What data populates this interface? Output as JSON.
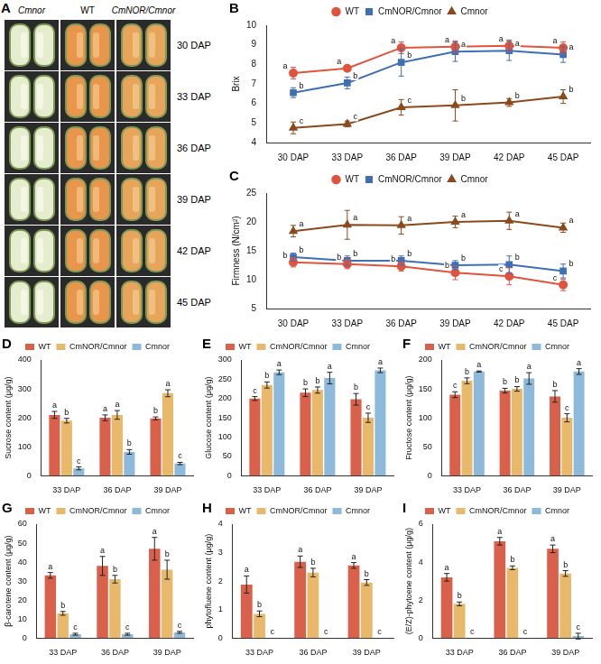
{
  "photo_panel": {
    "panel": "A",
    "columns": [
      "Cmnor",
      "WT",
      "CmNOR/Cmnor"
    ],
    "rows": [
      "30 DAP",
      "33 DAP",
      "36 DAP",
      "39 DAP",
      "42 DAP",
      "45 DAP"
    ]
  },
  "chart_data": [
    {
      "panel": "B",
      "type": "line",
      "y_label": "Brix",
      "categories": [
        "30 DAP",
        "33 DAP",
        "36 DAP",
        "39 DAP",
        "42 DAP",
        "45 DAP"
      ],
      "ylim": [
        4,
        10
      ],
      "yticks": [
        4,
        5,
        6,
        7,
        8,
        9,
        10
      ],
      "grid": false,
      "legend": "top",
      "series": [
        {
          "name": "WT",
          "color": "#e0533d",
          "marker": "circle",
          "values": [
            7.55,
            7.8,
            8.85,
            8.9,
            8.95,
            8.85
          ],
          "errors": [
            0.3,
            0.1,
            0.3,
            0.3,
            0.3,
            0.3
          ],
          "letters": [
            "a",
            "a",
            "a",
            "a",
            "a",
            "a"
          ]
        },
        {
          "name": "CmNOR/Cmnor",
          "color": "#3f6fb5",
          "marker": "square",
          "values": [
            6.55,
            7.05,
            8.1,
            8.65,
            8.7,
            8.5
          ],
          "errors": [
            0.25,
            0.3,
            0.7,
            0.5,
            0.5,
            0.4
          ],
          "letters": [
            "b",
            "b",
            "b",
            "a",
            "a",
            "a"
          ]
        },
        {
          "name": "Cmnor",
          "color": "#8b4a1e",
          "marker": "triangle",
          "values": [
            4.75,
            4.95,
            5.8,
            5.9,
            6.05,
            6.35
          ],
          "errors": [
            0.3,
            0.15,
            0.4,
            0.8,
            0.2,
            0.35
          ],
          "letters": [
            "c",
            "c",
            "c",
            "b",
            "b",
            "b"
          ]
        }
      ]
    },
    {
      "panel": "C",
      "type": "line",
      "y_label": "Firmness (N/cm²)",
      "categories": [
        "30 DAP",
        "33 DAP",
        "36 DAP",
        "39 DAP",
        "42 DAP",
        "45 DAP"
      ],
      "ylim": [
        5,
        25
      ],
      "yticks": [
        5,
        10,
        15,
        20,
        25
      ],
      "grid": false,
      "legend": "top",
      "series": [
        {
          "name": "WT",
          "color": "#e0533d",
          "marker": "circle",
          "values": [
            13,
            12.7,
            12.3,
            11.2,
            10.6,
            9.1
          ],
          "errors": [
            0.8,
            0.8,
            0.8,
            1.2,
            1.5,
            1
          ],
          "letters": [
            "b",
            "b",
            "b",
            "b",
            "c",
            "c"
          ]
        },
        {
          "name": "CmNOR/Cmnor",
          "color": "#3f6fb5",
          "marker": "square",
          "values": [
            13.9,
            13.3,
            13.3,
            12.5,
            12.6,
            11.5
          ],
          "errors": [
            0.7,
            0.8,
            0.8,
            0.8,
            1.5,
            1.2
          ],
          "letters": [
            "b",
            "b",
            "b",
            "b",
            "b",
            "b"
          ]
        },
        {
          "name": "Cmnor",
          "color": "#8b4a1e",
          "marker": "triangle",
          "values": [
            18.4,
            19.5,
            19.4,
            20,
            20.2,
            19
          ],
          "errors": [
            1,
            2.5,
            1.5,
            1,
            1.5,
            0.8
          ],
          "letters": [
            "a",
            "a",
            "a",
            "a",
            "a",
            "a"
          ]
        }
      ]
    },
    {
      "panel": "D",
      "type": "bar",
      "y_label": "Sucrose content (μg/g)",
      "categories": [
        "33 DAP",
        "36 DAP",
        "39 DAP"
      ],
      "ylim": [
        0,
        400
      ],
      "yticks": [
        0,
        100,
        200,
        300,
        400
      ],
      "grid": false,
      "legend": "top",
      "series": [
        {
          "name": "WT",
          "color": "#d9604a",
          "values": [
            210,
            200,
            198
          ],
          "errors": [
            12,
            10,
            5
          ],
          "letters": [
            "a",
            "a",
            "b"
          ]
        },
        {
          "name": "CmNOR/Cmnor",
          "color": "#e8b96a",
          "values": [
            190,
            210,
            285
          ],
          "errors": [
            8,
            15,
            12
          ],
          "letters": [
            "b",
            "a",
            "a"
          ]
        },
        {
          "name": "Cmnor",
          "color": "#8db9da",
          "values": [
            25,
            82,
            42
          ],
          "errors": [
            5,
            8,
            4
          ],
          "letters": [
            "c",
            "b",
            "c"
          ]
        }
      ]
    },
    {
      "panel": "E",
      "type": "bar",
      "y_label": "Glucose content (μg/g)",
      "categories": [
        "33 DAP",
        "36 DAP",
        "39 DAP"
      ],
      "ylim": [
        0,
        300
      ],
      "yticks": [
        0,
        50,
        100,
        150,
        200,
        250,
        300
      ],
      "grid": false,
      "legend": "top",
      "series": [
        {
          "name": "WT",
          "color": "#d9604a",
          "values": [
            200,
            215,
            198
          ],
          "errors": [
            5,
            10,
            15
          ],
          "letters": [
            "c",
            "b",
            "b"
          ]
        },
        {
          "name": "CmNOR/Cmnor",
          "color": "#e8b96a",
          "values": [
            235,
            222,
            150
          ],
          "errors": [
            8,
            8,
            12
          ],
          "letters": [
            "b",
            "b",
            "c"
          ]
        },
        {
          "name": "Cmnor",
          "color": "#8db9da",
          "values": [
            268,
            253,
            273
          ],
          "errors": [
            6,
            15,
            6
          ],
          "letters": [
            "a",
            "a",
            "a"
          ]
        }
      ]
    },
    {
      "panel": "F",
      "type": "bar",
      "y_label": "Fructose content (μg/g)",
      "categories": [
        "33 DAP",
        "36 DAP",
        "39 DAP"
      ],
      "ylim": [
        0,
        200
      ],
      "yticks": [
        0,
        50,
        100,
        150,
        200
      ],
      "grid": false,
      "legend": "top",
      "series": [
        {
          "name": "WT",
          "color": "#d9604a",
          "values": [
            140,
            147,
            137
          ],
          "errors": [
            5,
            4,
            10
          ],
          "letters": [
            "c",
            "b",
            "b"
          ]
        },
        {
          "name": "CmNOR/Cmnor",
          "color": "#e8b96a",
          "values": [
            164,
            150,
            100
          ],
          "errors": [
            5,
            4,
            7
          ],
          "letters": [
            "b",
            "b",
            "c"
          ]
        },
        {
          "name": "Cmnor",
          "color": "#8db9da",
          "values": [
            180,
            168,
            180
          ],
          "errors": [
            1,
            10,
            5
          ],
          "letters": [
            "a",
            "a",
            "a"
          ]
        }
      ]
    },
    {
      "panel": "G",
      "type": "bar",
      "y_label": "β-carotene content (μg/g)",
      "categories": [
        "33 DAP",
        "36 DAP",
        "39 DAP"
      ],
      "ylim": [
        0,
        60
      ],
      "yticks": [
        0,
        10,
        20,
        30,
        40,
        50,
        60
      ],
      "grid": false,
      "legend": "top",
      "series": [
        {
          "name": "WT",
          "color": "#d9604a",
          "values": [
            33,
            38,
            47
          ],
          "errors": [
            1.5,
            5,
            6
          ],
          "letters": [
            "a",
            "a",
            "a"
          ]
        },
        {
          "name": "CmNOR/Cmnor",
          "color": "#e8b96a",
          "values": [
            13,
            31,
            36
          ],
          "errors": [
            1,
            2,
            5
          ],
          "letters": [
            "b",
            "b",
            "b"
          ]
        },
        {
          "name": "Cmnor",
          "color": "#8db9da",
          "values": [
            2,
            2,
            3
          ],
          "errors": [
            0.5,
            0.5,
            0.5
          ],
          "letters": [
            "c",
            "c",
            "c"
          ]
        }
      ]
    },
    {
      "panel": "H",
      "type": "bar",
      "y_label": "phytofluene content (μg/g)",
      "categories": [
        "33 DAP",
        "36 DAP",
        "39 DAP"
      ],
      "ylim": [
        0,
        4
      ],
      "yticks": [
        0,
        1,
        2,
        3,
        4
      ],
      "grid": false,
      "legend": "top",
      "series": [
        {
          "name": "WT",
          "color": "#d9604a",
          "values": [
            1.88,
            2.68,
            2.55
          ],
          "errors": [
            0.3,
            0.2,
            0.1
          ],
          "letters": [
            "a",
            "a",
            "a"
          ]
        },
        {
          "name": "CmNOR/Cmnor",
          "color": "#e8b96a",
          "values": [
            0.85,
            2.3,
            1.95
          ],
          "errors": [
            0.1,
            0.15,
            0.1
          ],
          "letters": [
            "b",
            "b",
            "b"
          ]
        },
        {
          "name": "Cmnor",
          "color": "#8db9da",
          "values": [
            0,
            0,
            0
          ],
          "errors": [
            0,
            0,
            0
          ],
          "letters": [
            "c",
            "c",
            "c"
          ]
        }
      ]
    },
    {
      "panel": "I",
      "type": "bar",
      "y_label": "(E/Z)-phytoene content (μg/g)",
      "categories": [
        "33 DAP",
        "36 DAP",
        "39 DAP"
      ],
      "ylim": [
        0,
        6
      ],
      "yticks": [
        0,
        2,
        4,
        6
      ],
      "grid": false,
      "legend": "top",
      "series": [
        {
          "name": "WT",
          "color": "#d9604a",
          "values": [
            3.2,
            5.1,
            4.7
          ],
          "errors": [
            0.2,
            0.2,
            0.2
          ],
          "letters": [
            "a",
            "a",
            "a"
          ]
        },
        {
          "name": "CmNOR/Cmnor",
          "color": "#e8b96a",
          "values": [
            1.8,
            3.7,
            3.4
          ],
          "errors": [
            0.1,
            0.1,
            0.15
          ],
          "letters": [
            "b",
            "b",
            "b"
          ]
        },
        {
          "name": "Cmnor",
          "color": "#8db9da",
          "values": [
            0,
            0,
            0.1
          ],
          "errors": [
            0,
            0,
            0.15
          ],
          "letters": [
            "c",
            "c",
            "c"
          ]
        }
      ]
    }
  ]
}
